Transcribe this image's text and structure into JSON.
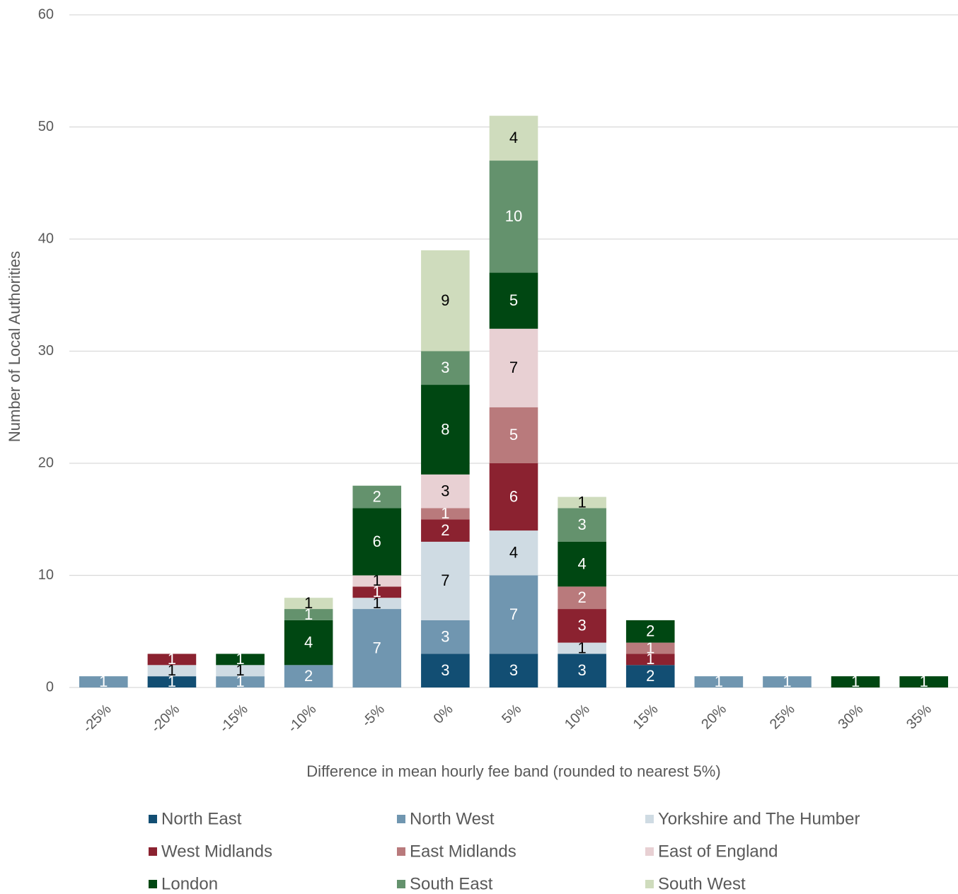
{
  "chart_data": {
    "type": "stacked_bar",
    "x_label": "Difference in mean hourly fee band (rounded to nearest 5%)",
    "y_label": "Number of Local Authorities",
    "categories": [
      "-25%",
      "-20%",
      "-15%",
      "-10%",
      "-5%",
      "0%",
      "5%",
      "10%",
      "15%",
      "20%",
      "25%",
      "30%",
      "35%"
    ],
    "series": [
      {
        "name": "North East",
        "color": "#124e73",
        "values": [
          null,
          1,
          null,
          null,
          null,
          3,
          3,
          3,
          2,
          null,
          null,
          null,
          null
        ]
      },
      {
        "name": "North West",
        "color": "#7096b0",
        "values": [
          1,
          null,
          1,
          2,
          7,
          3,
          7,
          null,
          null,
          1,
          1,
          null,
          null
        ]
      },
      {
        "name": "Yorkshire and The Humber",
        "color": "#cfdbe3",
        "values": [
          null,
          1,
          1,
          null,
          1,
          7,
          4,
          1,
          null,
          null,
          null,
          null,
          null
        ]
      },
      {
        "name": "West Midlands",
        "color": "#8b2230",
        "values": [
          null,
          1,
          null,
          null,
          1,
          2,
          6,
          3,
          1,
          null,
          null,
          null,
          null
        ]
      },
      {
        "name": "East Midlands",
        "color": "#b97a7c",
        "values": [
          null,
          null,
          null,
          null,
          null,
          1,
          5,
          2,
          1,
          null,
          null,
          null,
          null
        ]
      },
      {
        "name": "East of England",
        "color": "#e8d0d3",
        "values": [
          null,
          null,
          null,
          null,
          1,
          3,
          7,
          null,
          null,
          null,
          null,
          null,
          null
        ]
      },
      {
        "name": "London",
        "color": "#004712",
        "values": [
          null,
          null,
          1,
          4,
          6,
          8,
          5,
          4,
          2,
          null,
          null,
          1,
          1
        ]
      },
      {
        "name": "South East",
        "color": "#64926d",
        "values": [
          null,
          null,
          null,
          1,
          2,
          3,
          10,
          3,
          null,
          null,
          null,
          null,
          null
        ]
      },
      {
        "name": "South West",
        "color": "#cfdcbd",
        "values": [
          null,
          null,
          null,
          1,
          null,
          9,
          4,
          1,
          null,
          null,
          null,
          null,
          null
        ]
      }
    ],
    "ylim": [
      0,
      60
    ],
    "yticks": [
      0,
      10,
      20,
      30,
      40,
      50,
      60
    ],
    "grid": true
  }
}
